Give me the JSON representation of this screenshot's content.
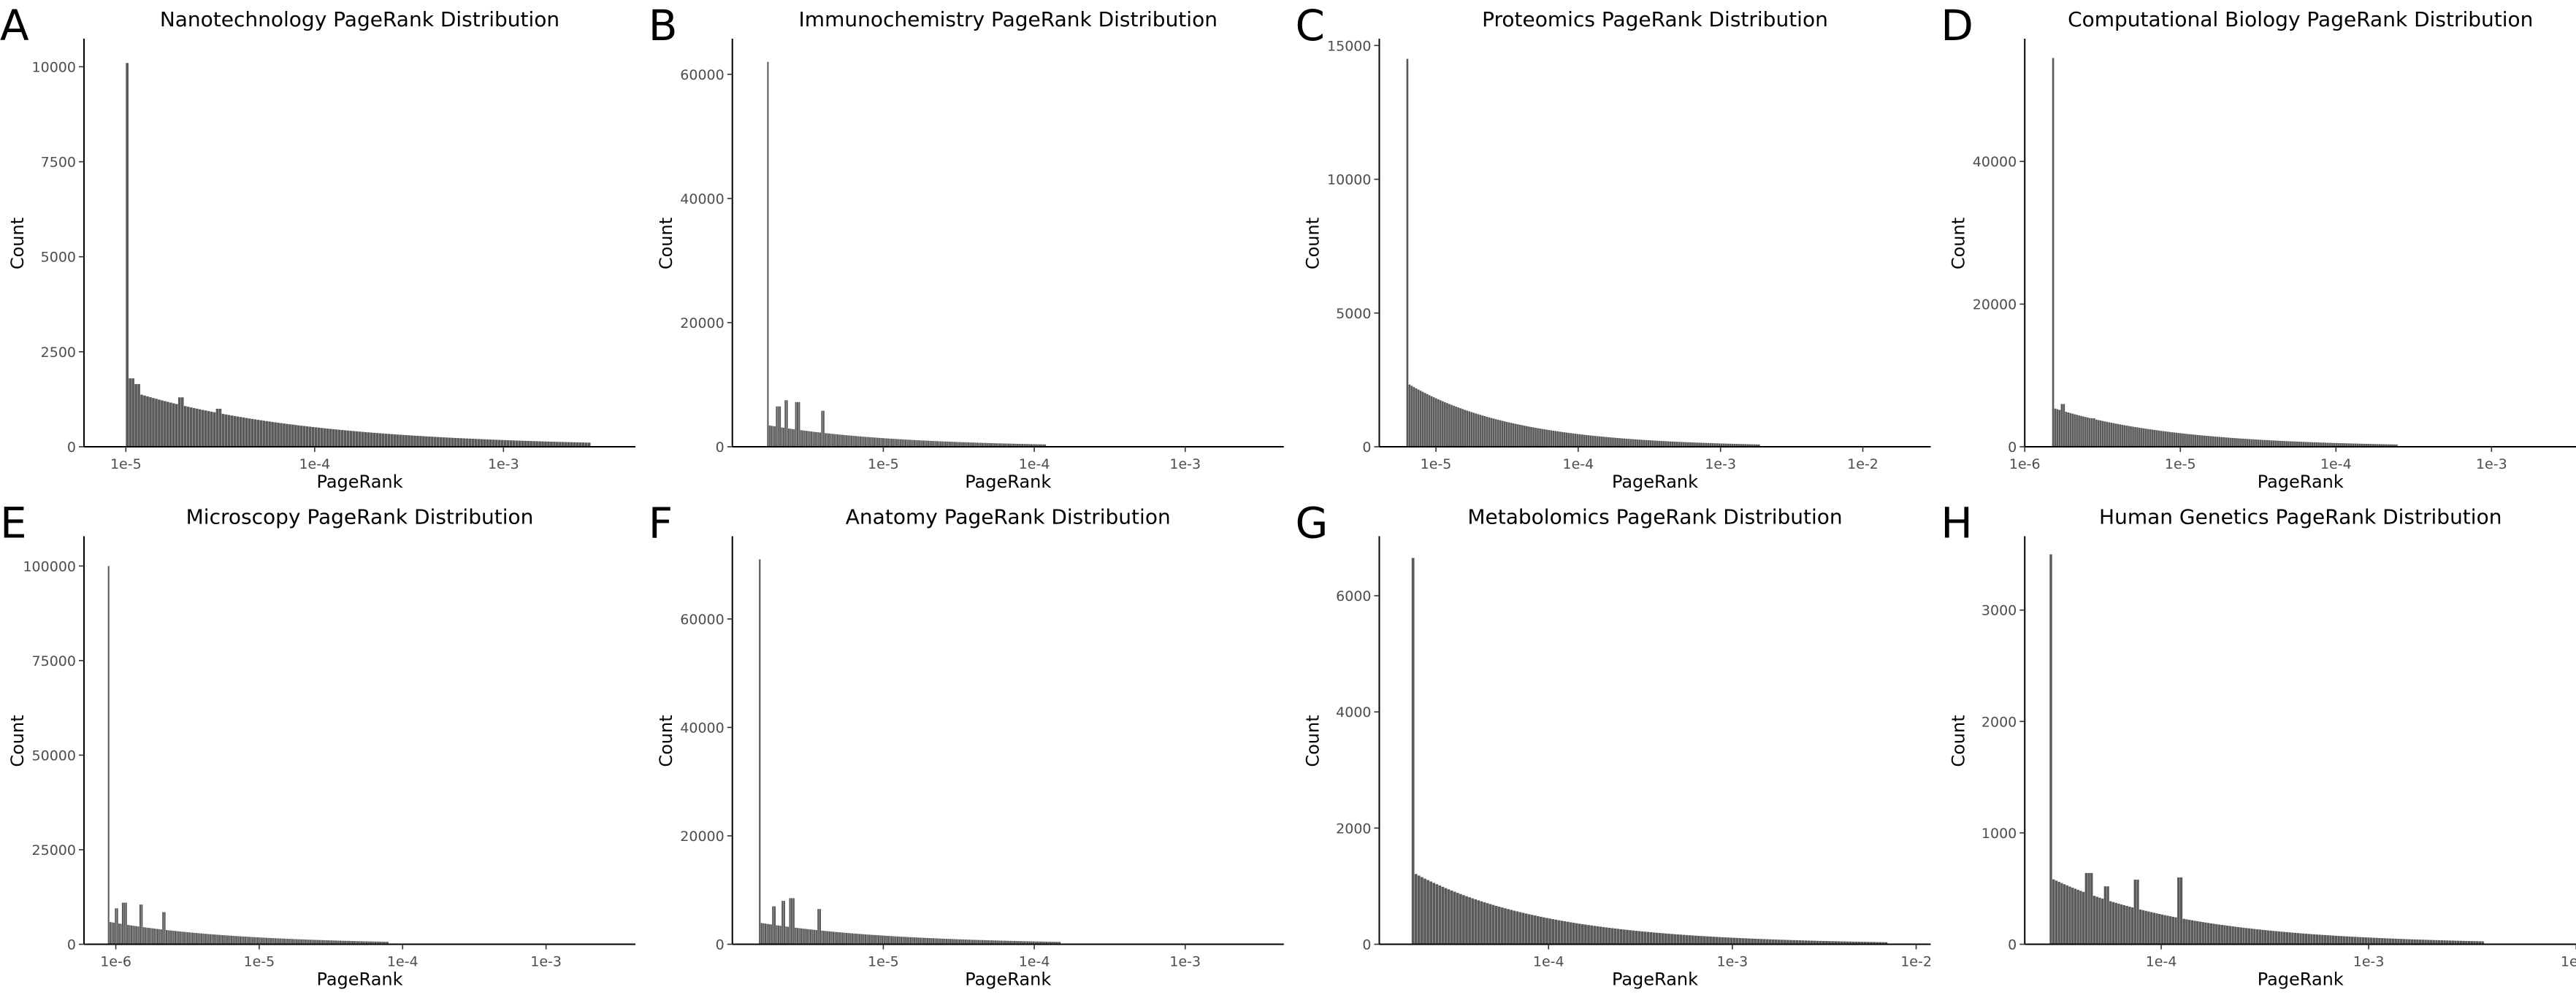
{
  "chart_data": [
    {
      "type": "bar",
      "panel": "A",
      "title": "Nanotechnology PageRank Distribution",
      "xlabel": "PageRank",
      "ylabel": "Count",
      "x_scale": "log10",
      "xlim": [
        6e-06,
        0.005
      ],
      "ylim": [
        0,
        10700
      ],
      "x_ticks": [
        1e-05,
        0.0001,
        0.001
      ],
      "x_tick_labels": [
        "1e-5",
        "1e-4",
        "1e-3"
      ],
      "y_ticks": [
        0,
        2500,
        5000,
        7500,
        10000
      ],
      "y_tick_labels": [
        "0",
        "2500",
        "5000",
        "7500",
        "10000"
      ],
      "x_min": 1e-05,
      "x_max": 0.0029,
      "peak": 10100,
      "base": 1500,
      "spikes": [
        [
          0.012,
          1800
        ],
        [
          0.025,
          1650
        ],
        [
          0.12,
          1300
        ],
        [
          0.2,
          1000
        ]
      ],
      "decay": 0.38,
      "grid": false
    },
    {
      "type": "bar",
      "panel": "B",
      "title": "Immunochemistry PageRank Distribution",
      "xlabel": "PageRank",
      "ylabel": "Count",
      "x_scale": "log10",
      "xlim": [
        1e-06,
        0.0045
      ],
      "ylim": [
        0,
        65500
      ],
      "x_ticks": [
        1e-05,
        0.0001,
        0.001
      ],
      "x_tick_labels": [
        "1e-5",
        "1e-4",
        "1e-3"
      ],
      "y_ticks": [
        0,
        20000,
        40000,
        60000
      ],
      "y_tick_labels": [
        "0",
        "20000",
        "40000",
        "60000"
      ],
      "x_min": 1.7e-06,
      "x_max": 0.00012,
      "peak": 62000,
      "base": 3500,
      "spikes": [
        [
          0.04,
          6500
        ],
        [
          0.07,
          7500
        ],
        [
          0.11,
          7200
        ],
        [
          0.2,
          5800
        ]
      ],
      "decay": 0.45,
      "grid": false
    },
    {
      "type": "bar",
      "panel": "C",
      "title": "Proteomics PageRank Distribution",
      "xlabel": "PageRank",
      "ylabel": "Count",
      "x_scale": "log10",
      "xlim": [
        4e-06,
        0.03
      ],
      "ylim": [
        0,
        15200
      ],
      "x_ticks": [
        1e-05,
        0.0001,
        0.001,
        0.01
      ],
      "x_tick_labels": [
        "1e-5",
        "1e-4",
        "1e-3",
        "1e-2"
      ],
      "y_ticks": [
        0,
        5000,
        10000,
        15000
      ],
      "y_tick_labels": [
        "0",
        "5000",
        "10000",
        "15000"
      ],
      "x_min": 6.2e-06,
      "x_max": 0.0019,
      "peak": 14500,
      "base": 2400,
      "spikes": [],
      "decay": 0.3,
      "grid": false
    },
    {
      "type": "bar",
      "panel": "D",
      "title": "Computational Biology PageRank Distribution",
      "xlabel": "PageRank",
      "ylabel": "Count",
      "x_scale": "log10",
      "xlim": [
        1e-06,
        0.0035
      ],
      "ylim": [
        0,
        57000
      ],
      "x_ticks": [
        1e-06,
        1e-05,
        0.0001,
        0.001
      ],
      "x_tick_labels": [
        "1e-6",
        "1e-5",
        "1e-4",
        "1e-3"
      ],
      "y_ticks": [
        0,
        20000,
        40000
      ],
      "y_tick_labels": [
        "0",
        "20000",
        "40000"
      ],
      "x_min": 1.5e-06,
      "x_max": 0.00025,
      "peak": 54500,
      "base": 5500,
      "spikes": [
        [
          0.03,
          6000
        ],
        [
          0.12,
          4000
        ]
      ],
      "decay": 0.35,
      "grid": false
    },
    {
      "type": "bar",
      "panel": "E",
      "title": "Microscopy PageRank Distribution",
      "xlabel": "PageRank",
      "ylabel": "Count",
      "x_scale": "log10",
      "xlim": [
        6e-07,
        0.0042
      ],
      "ylim": [
        0,
        107500
      ],
      "x_ticks": [
        1e-06,
        1e-05,
        0.0001,
        0.001
      ],
      "x_tick_labels": [
        "1e-6",
        "1e-5",
        "1e-4",
        "1e-3"
      ],
      "y_ticks": [
        0,
        25000,
        50000,
        75000,
        100000
      ],
      "y_tick_labels": [
        "0",
        "25000",
        "50000",
        "75000",
        "100000"
      ],
      "x_min": 8.8e-07,
      "x_max": 8e-05,
      "peak": 100000,
      "base": 6000,
      "spikes": [
        [
          0.03,
          9500
        ],
        [
          0.06,
          11000
        ],
        [
          0.12,
          10500
        ],
        [
          0.2,
          8500
        ]
      ],
      "decay": 0.45,
      "grid": false
    },
    {
      "type": "bar",
      "panel": "F",
      "title": "Anatomy PageRank Distribution",
      "xlabel": "PageRank",
      "ylabel": "Count",
      "x_scale": "log10",
      "xlim": [
        1e-06,
        0.0045
      ],
      "ylim": [
        0,
        75000
      ],
      "x_ticks": [
        1e-05,
        0.0001,
        0.001
      ],
      "x_tick_labels": [
        "1e-5",
        "1e-4",
        "1e-3"
      ],
      "y_ticks": [
        0,
        20000,
        40000,
        60000
      ],
      "y_tick_labels": [
        "0",
        "20000",
        "40000",
        "60000"
      ],
      "x_min": 1.5e-06,
      "x_max": 0.00015,
      "peak": 71000,
      "base": 4000,
      "spikes": [
        [
          0.05,
          7000
        ],
        [
          0.08,
          8000
        ],
        [
          0.11,
          8500
        ],
        [
          0.2,
          6500
        ]
      ],
      "decay": 0.45,
      "grid": false
    },
    {
      "type": "bar",
      "panel": "G",
      "title": "Metabolomics PageRank Distribution",
      "xlabel": "PageRank",
      "ylabel": "Count",
      "x_scale": "log10",
      "xlim": [
        1.2e-05,
        0.012
      ],
      "ylim": [
        0,
        7000
      ],
      "x_ticks": [
        0.0001,
        0.001,
        0.01
      ],
      "x_tick_labels": [
        "1e-4",
        "1e-3",
        "1e-2"
      ],
      "y_ticks": [
        0,
        2000,
        4000,
        6000
      ],
      "y_tick_labels": [
        "0",
        "2000",
        "4000",
        "6000"
      ],
      "x_min": 1.8e-05,
      "x_max": 0.007,
      "peak": 6650,
      "base": 1250,
      "spikes": [],
      "decay": 0.28,
      "grid": false
    },
    {
      "type": "bar",
      "panel": "H",
      "title": "Human Genetics PageRank Distribution",
      "xlabel": "PageRank",
      "ylabel": "Count",
      "x_scale": "log10",
      "xlim": [
        2.2e-05,
        0.01
      ],
      "ylim": [
        0,
        3650
      ],
      "x_ticks": [
        0.0001,
        0.001,
        0.01
      ],
      "x_tick_labels": [
        "1e-4",
        "1e-3",
        "1e-2"
      ],
      "y_ticks": [
        0,
        1000,
        2000,
        3000
      ],
      "y_tick_labels": [
        "0",
        "1000",
        "2000",
        "3000"
      ],
      "x_min": 2.9e-05,
      "x_max": 0.0036,
      "peak": 3500,
      "base": 600,
      "spikes": [
        [
          0.05,
          430
        ],
        [
          0.09,
          640
        ],
        [
          0.13,
          520
        ],
        [
          0.2,
          580
        ],
        [
          0.3,
          600
        ]
      ],
      "decay": 0.32,
      "grid": false
    }
  ]
}
